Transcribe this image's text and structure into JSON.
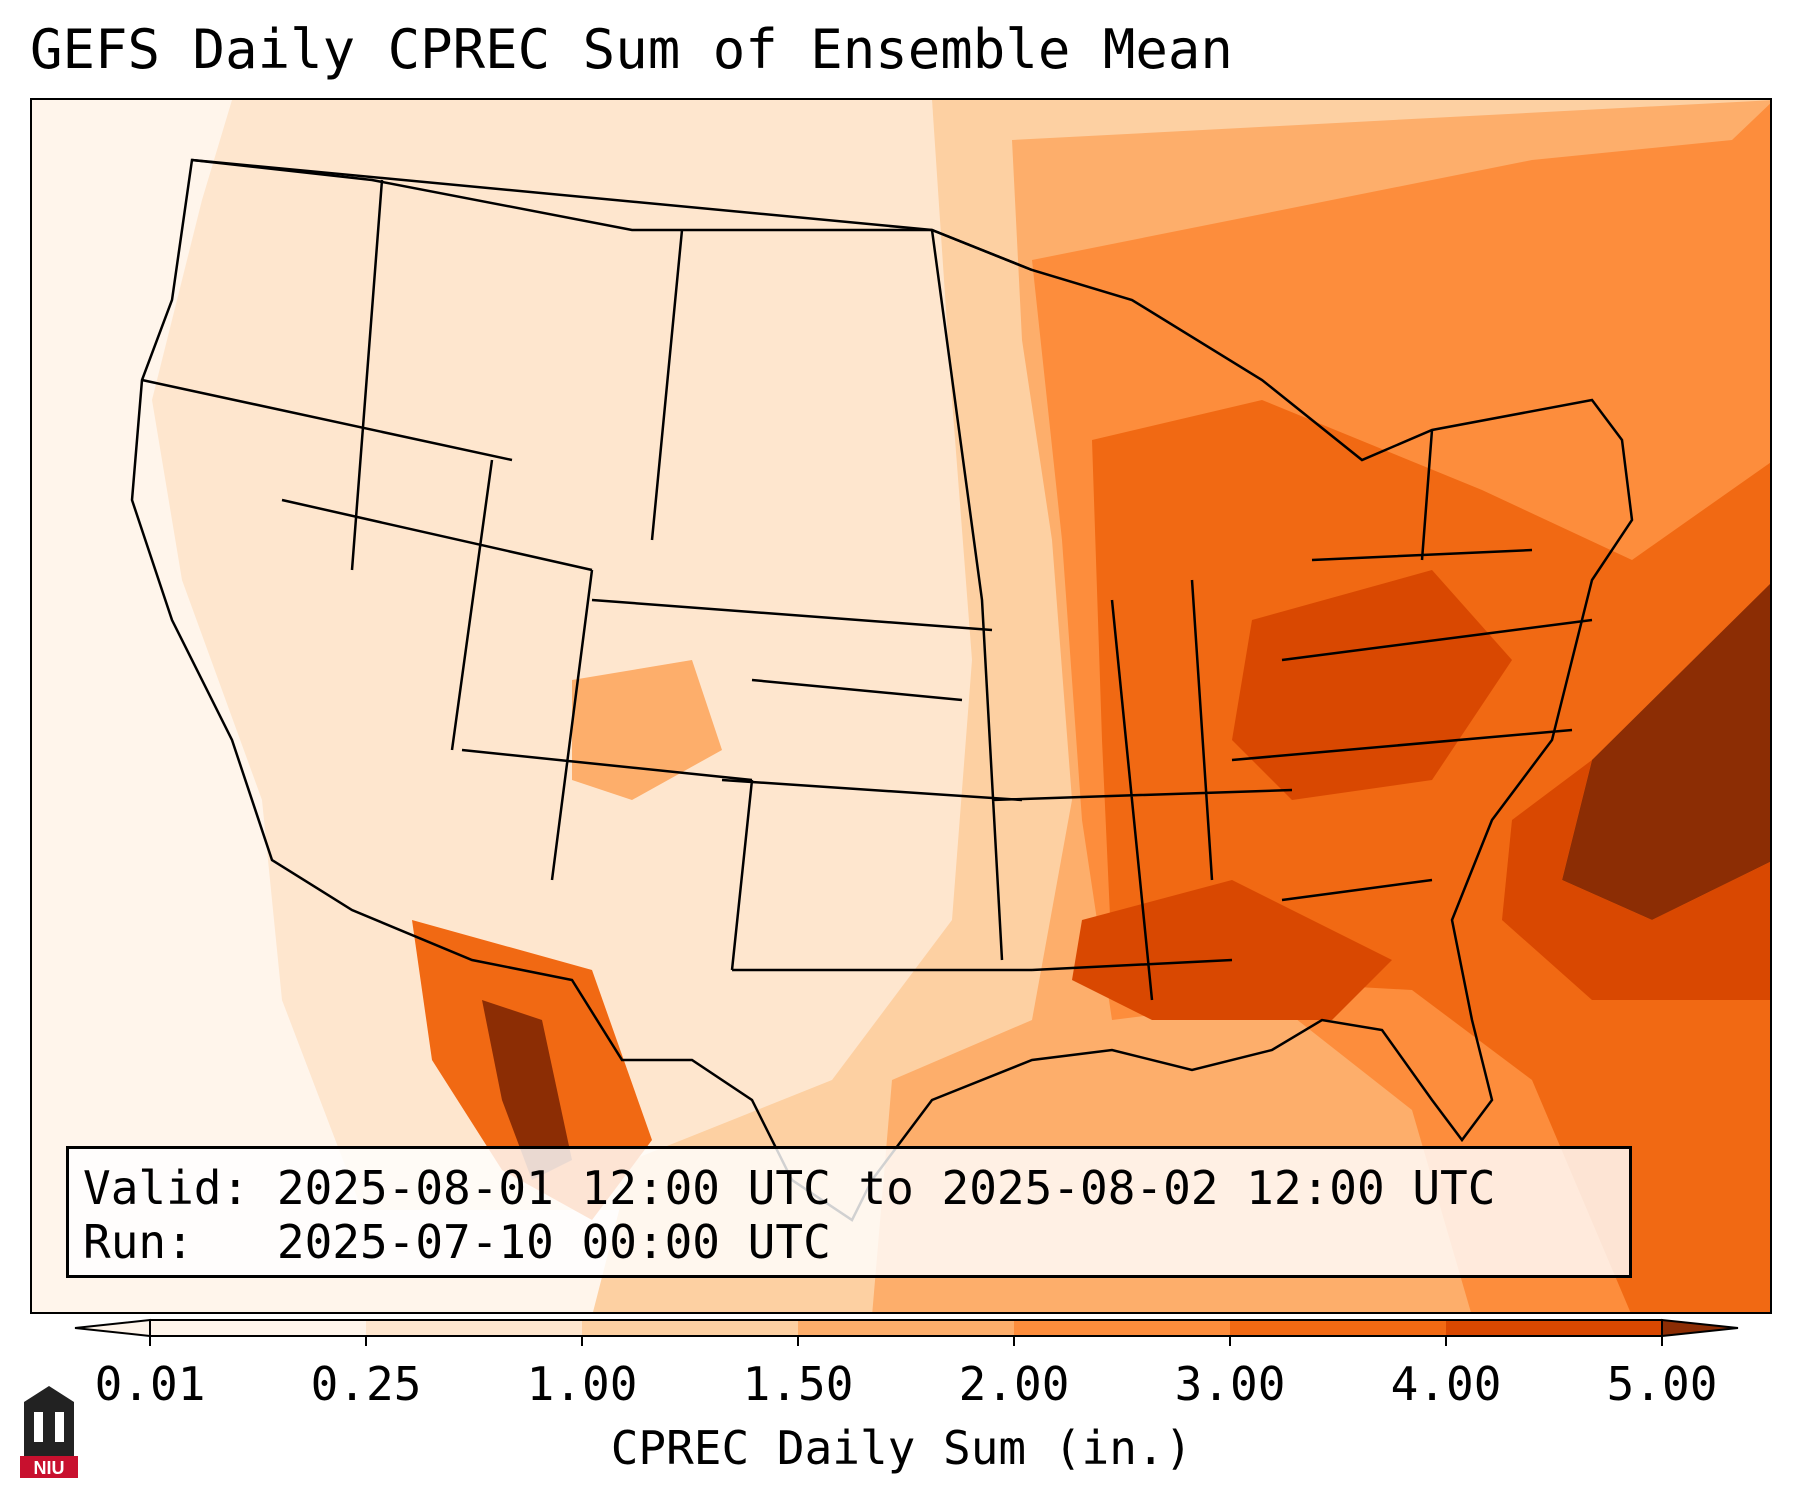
{
  "title": "GEFS Daily CPREC Sum of Ensemble Mean",
  "info": {
    "valid_label": "Valid:",
    "valid_value": "2025-08-01 12:00 UTC to 2025-08-02 12:00 UTC",
    "run_label": "Run:",
    "run_value": "2025-07-10 00:00 UTC"
  },
  "colorbar": {
    "label": "CPREC Daily Sum (in.)",
    "ticks": [
      "0.01",
      "0.25",
      "1.00",
      "1.50",
      "2.00",
      "3.00",
      "4.00",
      "5.00"
    ],
    "colors": [
      "#fff5eb",
      "#fee6ce",
      "#fdd0a2",
      "#fdae6b",
      "#fd8d3c",
      "#f16913",
      "#d94801",
      "#8c2d04"
    ],
    "extend": "both"
  },
  "logo": {
    "text": "NIU",
    "colors": {
      "shield": "#222222",
      "band": "#c8102e"
    }
  }
}
